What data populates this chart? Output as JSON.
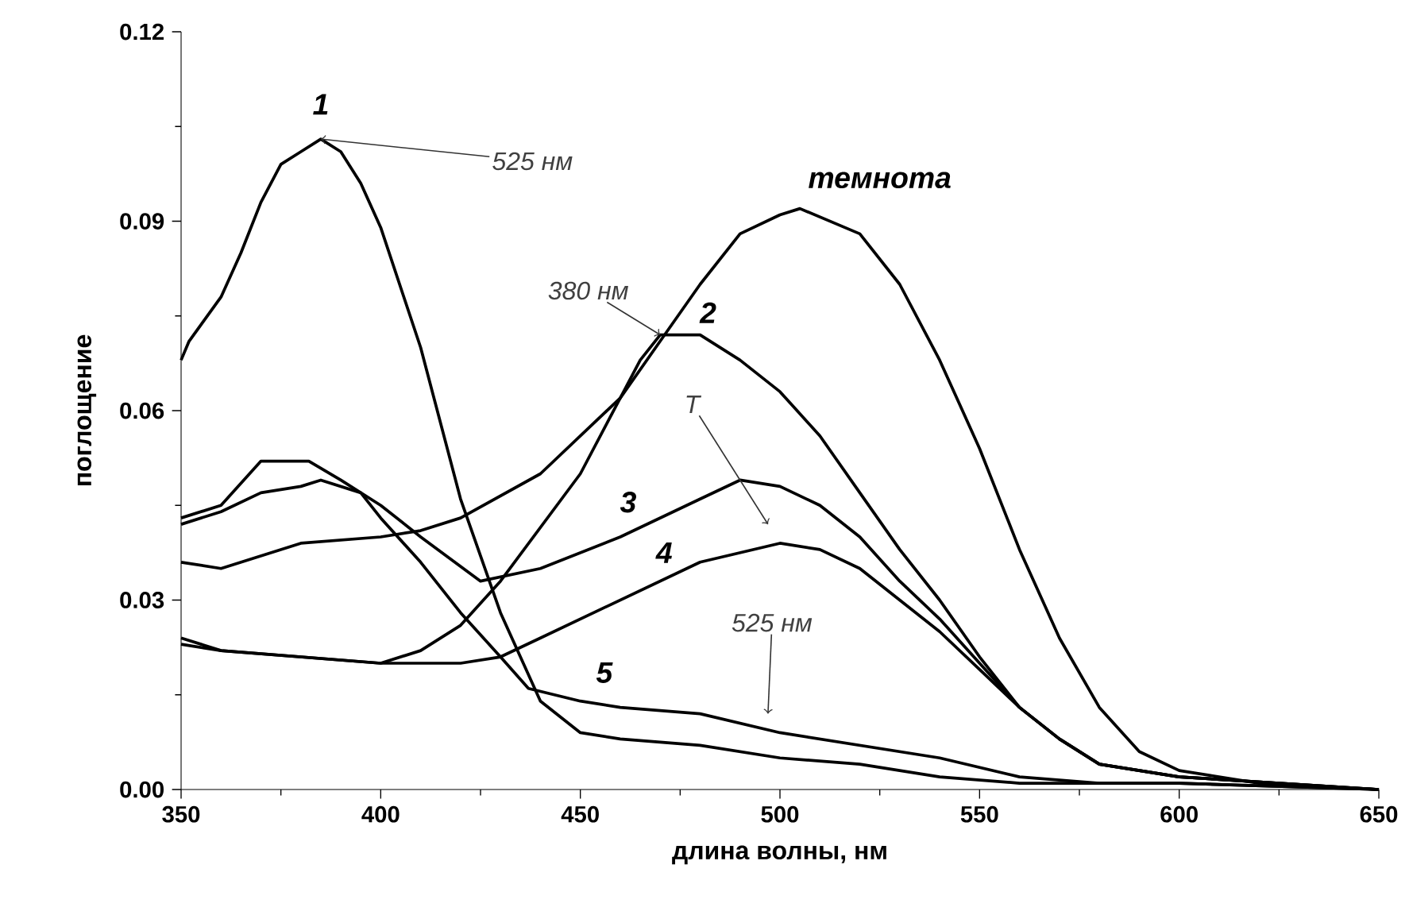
{
  "chart_data": {
    "type": "line",
    "xlabel": "длина волны, нм",
    "ylabel": "поглощение",
    "xlim": [
      350,
      650
    ],
    "xticks": [
      350,
      400,
      450,
      500,
      550,
      600,
      650
    ],
    "ylim": [
      0,
      0.12
    ],
    "yticks": [
      {
        "value": 0,
        "label": "0.00"
      },
      {
        "value": 0.03,
        "label": "0.03"
      },
      {
        "value": 0.06,
        "label": "0.06"
      },
      {
        "value": 0.09,
        "label": "0.09"
      },
      {
        "value": 0.12,
        "label": "0.12"
      }
    ],
    "series": [
      {
        "name": "темнота",
        "color": "#000000",
        "x": [
          350,
          360,
          380,
          400,
          410,
          420,
          440,
          460,
          470,
          480,
          490,
          500,
          505,
          520,
          530,
          540,
          550,
          560,
          570,
          580,
          590,
          600,
          620,
          650
        ],
        "values": [
          0.036,
          0.035,
          0.039,
          0.04,
          0.041,
          0.043,
          0.05,
          0.062,
          0.071,
          0.08,
          0.088,
          0.091,
          0.092,
          0.088,
          0.08,
          0.068,
          0.054,
          0.038,
          0.024,
          0.013,
          0.006,
          0.003,
          0.001,
          0
        ]
      },
      {
        "name": "1",
        "color": "#000000",
        "x": [
          350,
          352,
          360,
          365,
          370,
          375,
          380,
          385,
          390,
          395,
          400,
          410,
          420,
          430,
          440,
          450,
          460,
          480,
          500,
          520,
          540,
          560,
          600,
          650
        ],
        "values": [
          0.068,
          0.071,
          0.078,
          0.085,
          0.093,
          0.099,
          0.101,
          0.103,
          0.101,
          0.096,
          0.089,
          0.07,
          0.046,
          0.028,
          0.014,
          0.009,
          0.008,
          0.007,
          0.005,
          0.004,
          0.002,
          0.001,
          0.001,
          0
        ]
      },
      {
        "name": "2",
        "color": "#000000",
        "x": [
          350,
          360,
          380,
          400,
          410,
          420,
          430,
          450,
          465,
          470,
          480,
          490,
          500,
          510,
          520,
          530,
          540,
          550,
          560,
          570,
          580,
          590,
          600,
          650
        ],
        "values": [
          0.024,
          0.022,
          0.021,
          0.02,
          0.022,
          0.026,
          0.033,
          0.05,
          0.068,
          0.072,
          0.072,
          0.068,
          0.063,
          0.056,
          0.047,
          0.038,
          0.03,
          0.021,
          0.013,
          0.008,
          0.004,
          0.003,
          0.002,
          0
        ]
      },
      {
        "name": "3",
        "color": "#000000",
        "x": [
          350,
          360,
          370,
          382,
          390,
          400,
          410,
          425,
          440,
          460,
          480,
          490,
          500,
          510,
          520,
          530,
          540,
          550,
          560,
          570,
          580,
          600,
          650
        ],
        "values": [
          0.043,
          0.045,
          0.052,
          0.052,
          0.049,
          0.045,
          0.04,
          0.033,
          0.035,
          0.04,
          0.046,
          0.049,
          0.048,
          0.045,
          0.04,
          0.033,
          0.027,
          0.02,
          0.013,
          0.008,
          0.004,
          0.002,
          0
        ]
      },
      {
        "name": "4",
        "color": "#000000",
        "x": [
          350,
          360,
          380,
          400,
          420,
          430,
          440,
          460,
          480,
          500,
          510,
          520,
          530,
          540,
          550,
          560,
          570,
          580,
          600,
          650
        ],
        "values": [
          0.023,
          0.022,
          0.021,
          0.02,
          0.02,
          0.021,
          0.024,
          0.03,
          0.036,
          0.039,
          0.038,
          0.035,
          0.03,
          0.025,
          0.019,
          0.013,
          0.008,
          0.004,
          0.002,
          0
        ]
      },
      {
        "name": "5",
        "color": "#000000",
        "x": [
          350,
          360,
          370,
          380,
          385,
          395,
          400,
          410,
          420,
          430,
          437,
          450,
          460,
          480,
          500,
          520,
          540,
          560,
          580,
          600,
          650
        ],
        "values": [
          0.042,
          0.044,
          0.047,
          0.048,
          0.049,
          0.047,
          0.043,
          0.036,
          0.028,
          0.021,
          0.016,
          0.014,
          0.013,
          0.012,
          0.009,
          0.007,
          0.005,
          0.002,
          0.001,
          0.001,
          0
        ]
      }
    ],
    "annotations": [
      {
        "text": "525 нм",
        "x": 385,
        "y": 0.103
      },
      {
        "text": "380 нм",
        "x": 470,
        "y": 0.072
      },
      {
        "text": "T",
        "x": 497,
        "y": 0.042
      },
      {
        "text": "525 нм",
        "x": 497,
        "y": 0.012
      }
    ]
  }
}
